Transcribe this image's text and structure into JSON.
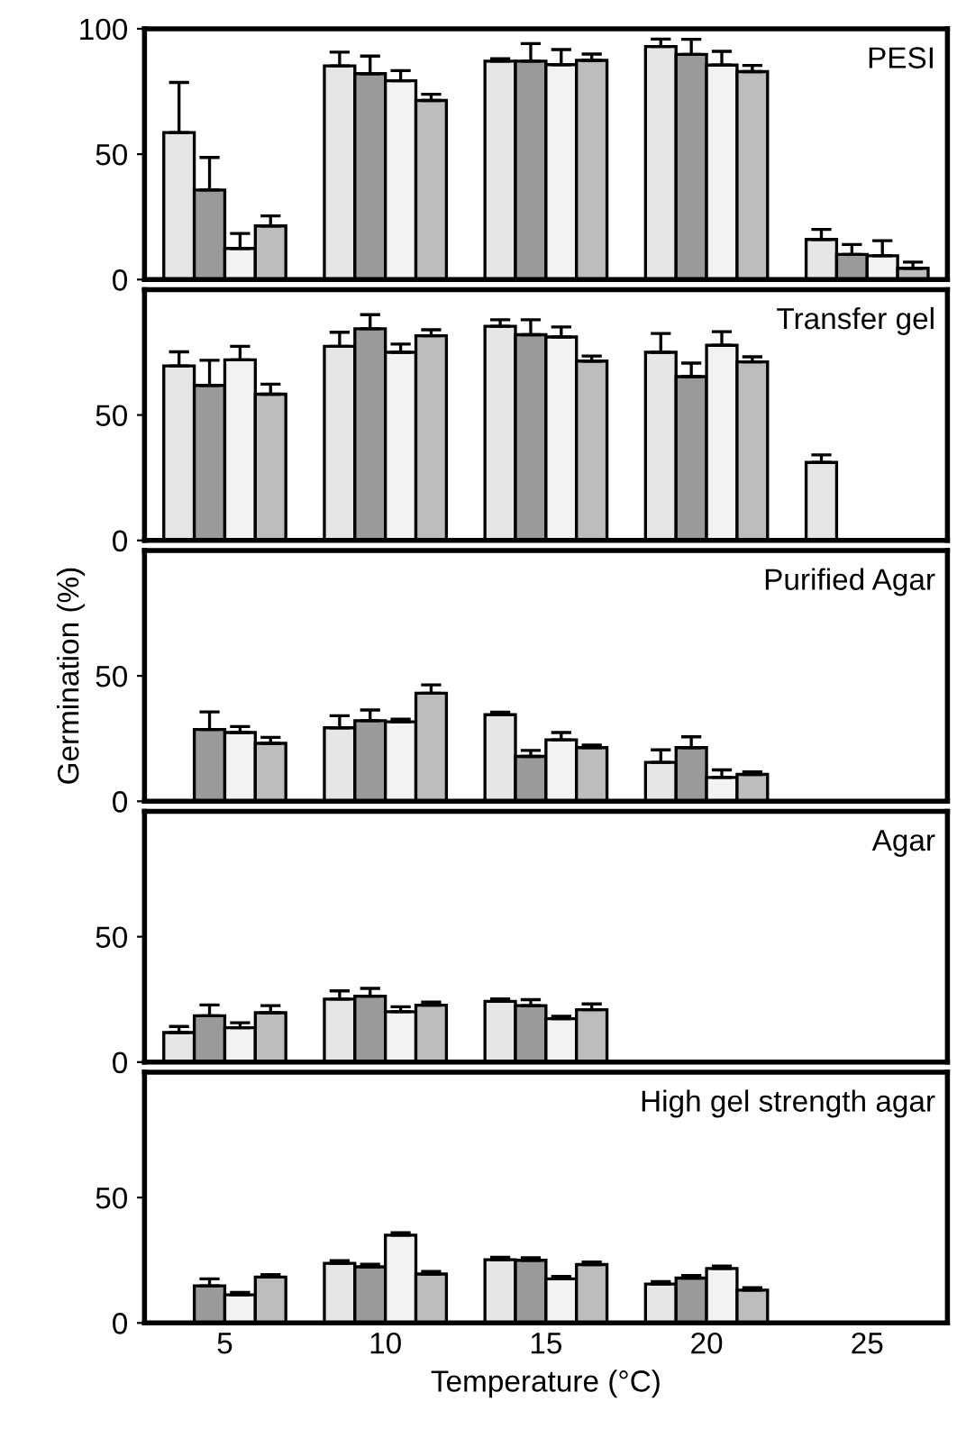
{
  "chart_data": [
    {
      "type": "bar",
      "title": "PESI",
      "categories": [
        "5",
        "10",
        "15",
        "20",
        "25"
      ],
      "ylim": [
        0,
        100
      ],
      "yticks": [
        0,
        50,
        100
      ],
      "tick_labels": "y",
      "series": [
        {
          "color": "#e6e6e6",
          "values": [
            58.6,
            85.2,
            87.1,
            92.9,
            16
          ],
          "errors": [
            20,
            5.5,
            1,
            3,
            4
          ]
        },
        {
          "color": "#9a9a9a",
          "values": [
            35.7,
            82.1,
            87.1,
            89.8,
            10
          ],
          "errors": [
            13,
            7,
            7,
            6,
            4
          ]
        },
        {
          "color": "#f2f2f2",
          "values": [
            12.4,
            79.3,
            85.7,
            85.5,
            9.5
          ],
          "errors": [
            6,
            4,
            6,
            5.5,
            6
          ]
        },
        {
          "color": "#bdbdbd",
          "values": [
            21.4,
            71.4,
            87.4,
            82.9,
            4.5
          ],
          "errors": [
            4,
            2.5,
            2.5,
            2.5,
            2.5
          ]
        }
      ]
    },
    {
      "type": "bar",
      "title": "Transfer gel",
      "categories": [
        "5",
        "10",
        "15",
        "20",
        "25"
      ],
      "ylim": [
        0,
        100
      ],
      "yticks": [
        0,
        50
      ],
      "tick_labels": "y",
      "series": [
        {
          "color": "#e6e6e6",
          "values": [
            69.6,
            77.4,
            85.4,
            75,
            31.1
          ],
          "errors": [
            5.6,
            5.6,
            2.6,
            7.5,
            3
          ]
        },
        {
          "color": "#9a9a9a",
          "values": [
            61.8,
            84.4,
            82,
            65.3,
            null
          ],
          "errors": [
            10,
            5.6,
            6,
            5.4,
            null
          ]
        },
        {
          "color": "#f2f2f2",
          "values": [
            72,
            75,
            81.1,
            77.8,
            null
          ],
          "errors": [
            5.4,
            3.3,
            4,
            5.4,
            null
          ]
        },
        {
          "color": "#bdbdbd",
          "values": [
            58.3,
            81.6,
            71.5,
            71.2,
            null
          ],
          "errors": [
            4,
            2.4,
            2,
            2,
            null
          ]
        }
      ]
    },
    {
      "type": "bar",
      "title": "Purified Agar",
      "ylabel": "Germination (%)",
      "categories": [
        "5",
        "10",
        "15",
        "20",
        "25"
      ],
      "ylim": [
        0,
        100
      ],
      "yticks": [
        0,
        50
      ],
      "tick_labels": "y",
      "series": [
        {
          "color": "#e6e6e6",
          "values": [
            null,
            29.3,
            34.5,
            15.5,
            null
          ],
          "errors": [
            null,
            4.8,
            1,
            5,
            null
          ]
        },
        {
          "color": "#9a9a9a",
          "values": [
            28.6,
            32.1,
            17.9,
            21.4,
            null
          ],
          "errors": [
            7,
            4.3,
            2.4,
            4.3,
            null
          ]
        },
        {
          "color": "#f2f2f2",
          "values": [
            27.4,
            31.7,
            24.5,
            9.5,
            null
          ],
          "errors": [
            2.4,
            1,
            2.9,
            3,
            null
          ]
        },
        {
          "color": "#bdbdbd",
          "values": [
            23.1,
            43.1,
            21.4,
            10.7,
            null
          ],
          "errors": [
            2.4,
            3.3,
            1,
            1,
            null
          ]
        }
      ]
    },
    {
      "type": "bar",
      "title": "Agar",
      "categories": [
        "5",
        "10",
        "15",
        "20",
        "25"
      ],
      "ylim": [
        0,
        100
      ],
      "yticks": [
        0,
        50
      ],
      "tick_labels": "y",
      "series": [
        {
          "color": "#e6e6e6",
          "values": [
            11.8,
            25.1,
            24.2,
            null,
            null
          ],
          "errors": [
            2.4,
            3.3,
            1,
            null,
            null
          ]
        },
        {
          "color": "#9a9a9a",
          "values": [
            18.5,
            26.3,
            22.5,
            null,
            null
          ],
          "errors": [
            4.3,
            3.1,
            2.4,
            null,
            null
          ]
        },
        {
          "color": "#f2f2f2",
          "values": [
            13.7,
            20.1,
            17.3,
            null,
            null
          ],
          "errors": [
            2,
            2,
            1,
            null,
            null
          ]
        },
        {
          "color": "#bdbdbd",
          "values": [
            19.7,
            22.7,
            20.9,
            null,
            null
          ],
          "errors": [
            2.8,
            1.2,
            2.3,
            null,
            null
          ]
        }
      ]
    },
    {
      "type": "bar",
      "title": "High gel strength agar",
      "xlabel": "Temperature (°C)",
      "categories": [
        "5",
        "10",
        "15",
        "20",
        "25"
      ],
      "ylim": [
        0,
        100
      ],
      "yticks": [
        0,
        50
      ],
      "series": [
        {
          "color": "#e6e6e6",
          "values": [
            null,
            23.8,
            25.2,
            15.5,
            null
          ],
          "errors": [
            null,
            1,
            1,
            1,
            null
          ]
        },
        {
          "color": "#9a9a9a",
          "values": [
            14.8,
            22.4,
            25,
            17.9,
            null
          ],
          "errors": [
            2.8,
            1,
            1,
            1,
            null
          ]
        },
        {
          "color": "#f2f2f2",
          "values": [
            11.2,
            35,
            17.6,
            21.7,
            null
          ],
          "errors": [
            1,
            1,
            1,
            1,
            null
          ]
        },
        {
          "color": "#bdbdbd",
          "values": [
            18.3,
            19.5,
            23.3,
            13.1,
            null
          ],
          "errors": [
            1,
            1,
            1,
            1,
            null
          ]
        }
      ]
    }
  ]
}
